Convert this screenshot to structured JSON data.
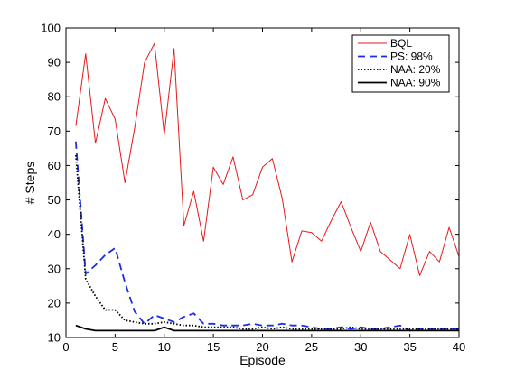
{
  "chart_data": {
    "type": "line",
    "xlabel": "Episode",
    "ylabel": "# Steps",
    "xlim": [
      0,
      40
    ],
    "ylim": [
      10,
      100
    ],
    "xticks": [
      0,
      5,
      10,
      15,
      20,
      25,
      30,
      35,
      40
    ],
    "yticks": [
      10,
      20,
      30,
      40,
      50,
      60,
      70,
      80,
      90,
      100
    ],
    "grid": false,
    "legend_position": "top-right",
    "x": [
      1,
      2,
      3,
      4,
      5,
      6,
      7,
      8,
      9,
      10,
      11,
      12,
      13,
      14,
      15,
      16,
      17,
      18,
      19,
      20,
      21,
      22,
      23,
      24,
      25,
      26,
      27,
      28,
      29,
      30,
      31,
      32,
      33,
      34,
      35,
      36,
      37,
      38,
      39,
      40
    ],
    "series": [
      {
        "name": "BQL",
        "color": "#e41a1c",
        "style": "solid",
        "values": [
          71.5,
          92.5,
          66.5,
          79.5,
          73.5,
          55.0,
          71.0,
          90.0,
          95.5,
          69.0,
          94.0,
          42.5,
          52.5,
          38.0,
          59.5,
          54.5,
          62.5,
          50.0,
          51.5,
          59.5,
          62.0,
          50.5,
          32.0,
          41.0,
          40.5,
          38.0,
          44.0,
          49.5,
          42.0,
          35.0,
          43.5,
          35.0,
          32.5,
          30.0,
          40.0,
          28.0,
          35.0,
          32.0,
          42.0,
          33.5
        ]
      },
      {
        "name": "PS: 98%",
        "color": "#1a2ee6",
        "style": "dashed",
        "values": [
          67.0,
          28.5,
          31.0,
          34.0,
          36.0,
          26.0,
          17.5,
          14.0,
          16.5,
          15.5,
          14.5,
          16.0,
          17.0,
          14.0,
          14.0,
          13.5,
          13.5,
          13.5,
          14.0,
          13.5,
          13.5,
          14.0,
          13.5,
          13.5,
          13.0,
          12.5,
          12.5,
          13.0,
          12.5,
          13.0,
          12.5,
          12.5,
          13.0,
          13.5,
          12.0,
          12.5,
          12.5,
          12.5,
          12.5,
          12.5
        ]
      },
      {
        "name": "NAA: 20%",
        "color": "#000000",
        "style": "dotted",
        "values": [
          63.0,
          27.0,
          22.0,
          18.0,
          18.0,
          15.0,
          14.5,
          14.0,
          14.0,
          14.5,
          14.0,
          13.5,
          13.5,
          13.0,
          13.0,
          13.0,
          13.0,
          12.5,
          12.5,
          13.0,
          12.5,
          13.0,
          12.5,
          12.5,
          12.5,
          12.5,
          12.5,
          12.5,
          13.0,
          12.5,
          12.5,
          12.5,
          12.5,
          12.5,
          12.5,
          12.5,
          12.5,
          12.5,
          12.5,
          12.5
        ]
      },
      {
        "name": "NAA: 90%",
        "color": "#000000",
        "style": "solid",
        "values": [
          13.5,
          12.5,
          12.0,
          12.0,
          12.0,
          12.0,
          12.0,
          12.0,
          12.0,
          13.0,
          12.0,
          12.0,
          12.0,
          12.0,
          12.0,
          12.0,
          12.0,
          12.0,
          12.0,
          12.0,
          12.0,
          12.0,
          12.0,
          12.0,
          12.0,
          12.0,
          12.0,
          12.0,
          12.0,
          12.0,
          12.0,
          12.0,
          12.0,
          12.0,
          12.0,
          12.0,
          12.0,
          12.0,
          12.0,
          12.0
        ]
      }
    ]
  }
}
